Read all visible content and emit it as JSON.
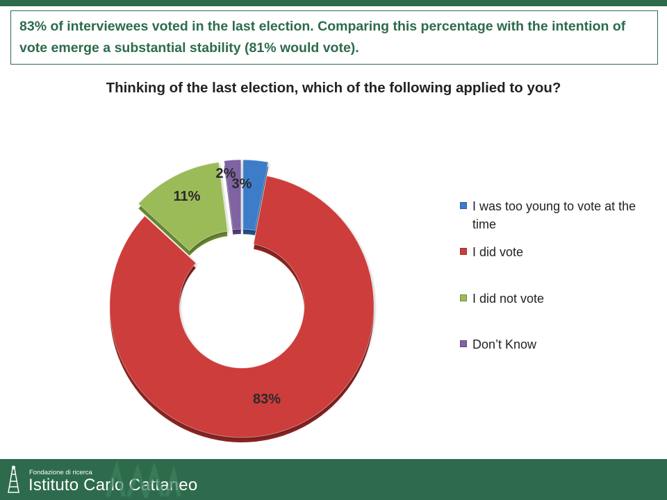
{
  "headline": "83% of interviewees voted in the last election. Comparing this percentage with the intention of vote emerge a substantial stability (81% would vote).",
  "footer": {
    "subtitle": "Fondazione di ricerca",
    "name": "Istituto Carlo Cattaneo"
  },
  "colors": {
    "brand": "#2d6b4c",
    "blue": "#3d7cc9",
    "red": "#cc3d3a",
    "green": "#9bbb59",
    "purple": "#8064a2"
  },
  "chart_data": {
    "type": "pie",
    "variant": "exploded-doughnut",
    "title": "Thinking of the last election, which of the following applied to you?",
    "legend_position": "right",
    "series": [
      {
        "name": "I was too young to vote at the time",
        "value": 3,
        "label": "3%",
        "color": "#3d7cc9",
        "dark": "#23508a"
      },
      {
        "name": "I did vote",
        "value": 83,
        "label": "83%",
        "color": "#cc3d3a",
        "dark": "#8a2422"
      },
      {
        "name": "I did not vote",
        "value": 11,
        "label": "11%",
        "color": "#9bbb59",
        "dark": "#6a8a32"
      },
      {
        "name": "Don’t Know",
        "value": 2,
        "label": "2%",
        "color": "#8064a2",
        "dark": "#543f73"
      }
    ]
  }
}
